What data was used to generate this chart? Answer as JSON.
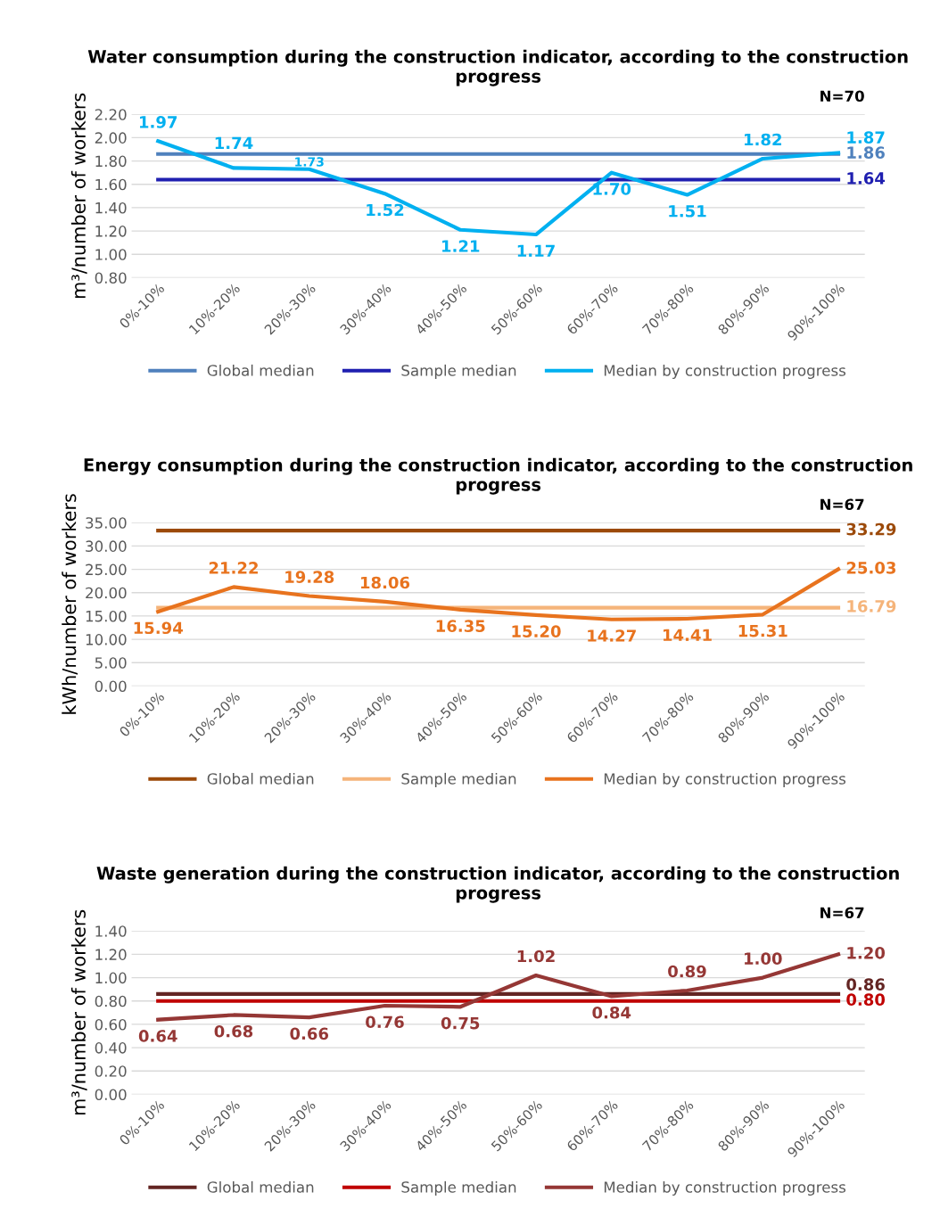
{
  "chart_data": [
    {
      "type": "line",
      "title": "Water consumption during the construction indicator, according to the construction progress",
      "ylabel": "m³/number of workers",
      "annotations": [
        "N=70"
      ],
      "categories": [
        "0%-10%",
        "10%-20%",
        "20%-30%",
        "30%-40%",
        "40%-50%",
        "50%-60%",
        "60%-70%",
        "70%-80%",
        "80%-90%",
        "90%-100%"
      ],
      "series": [
        {
          "name": "Global median",
          "color": "#4f81bd",
          "values": [
            1.86,
            1.86,
            1.86,
            1.86,
            1.86,
            1.86,
            1.86,
            1.86,
            1.86,
            1.86
          ],
          "value_labels": [
            null,
            null,
            null,
            null,
            null,
            null,
            null,
            null,
            null,
            "1.86"
          ]
        },
        {
          "name": "Sample median",
          "color": "#1f1fb0",
          "values": [
            1.64,
            1.64,
            1.64,
            1.64,
            1.64,
            1.64,
            1.64,
            1.64,
            1.64,
            1.64
          ],
          "value_labels": [
            null,
            null,
            null,
            null,
            null,
            null,
            null,
            null,
            null,
            "1.64"
          ]
        },
        {
          "name": "Median by construction progress",
          "color": "#00b0f0",
          "values": [
            1.97,
            1.74,
            1.73,
            1.52,
            1.21,
            1.17,
            1.7,
            1.51,
            1.82,
            1.87
          ],
          "value_labels": [
            "1.97",
            "1.74",
            "1.73",
            "1.52",
            "1.21",
            "1.17",
            "1.70",
            "1.51",
            "1.82",
            "1.87"
          ]
        }
      ],
      "ylim": [
        0.8,
        2.2
      ],
      "yticks": [
        {
          "value": 0.8,
          "label": "0.80"
        },
        {
          "value": 1.0,
          "label": "1.00"
        },
        {
          "value": 1.2,
          "label": "1.20"
        },
        {
          "value": 1.4,
          "label": "1.40"
        },
        {
          "value": 1.6,
          "label": "1.60"
        },
        {
          "value": 1.8,
          "label": "1.80"
        },
        {
          "value": 2.0,
          "label": "2.00"
        },
        {
          "value": 2.2,
          "label": "2.20"
        }
      ],
      "grid": "y",
      "legend": "bottom",
      "marker": "none",
      "line_style": "solid"
    },
    {
      "type": "line",
      "title": "Energy consumption during the construction indicator, according to the construction progress",
      "ylabel": "kWh/number of workers",
      "annotations": [
        "N=67"
      ],
      "categories": [
        "0%-10%",
        "10%-20%",
        "20%-30%",
        "30%-40%",
        "40%-50%",
        "50%-60%",
        "60%-70%",
        "70%-80%",
        "80%-90%",
        "90%-100%"
      ],
      "series": [
        {
          "name": "Global median",
          "color": "#9c4a0a",
          "values": [
            33.29,
            33.29,
            33.29,
            33.29,
            33.29,
            33.29,
            33.29,
            33.29,
            33.29,
            33.29
          ],
          "value_labels": [
            null,
            null,
            null,
            null,
            null,
            null,
            null,
            null,
            null,
            "33.29"
          ]
        },
        {
          "name": "Sample median",
          "color": "#f5b47a",
          "values": [
            16.79,
            16.79,
            16.79,
            16.79,
            16.79,
            16.79,
            16.79,
            16.79,
            16.79,
            16.79
          ],
          "value_labels": [
            null,
            null,
            null,
            null,
            null,
            null,
            null,
            null,
            null,
            "16.79"
          ]
        },
        {
          "name": "Median by construction progress",
          "color": "#e8731e",
          "values": [
            15.94,
            21.22,
            19.28,
            18.06,
            16.35,
            15.2,
            14.27,
            14.41,
            15.31,
            25.03
          ],
          "value_labels": [
            "15.94",
            "21.22",
            "19.28",
            "18.06",
            "16.35",
            "15.20",
            "14.27",
            "14.41",
            "15.31",
            "25.03"
          ]
        }
      ],
      "ylim": [
        0,
        35
      ],
      "yticks": [
        {
          "value": 0,
          "label": "0.00"
        },
        {
          "value": 5,
          "label": "5.00"
        },
        {
          "value": 10,
          "label": "10.00"
        },
        {
          "value": 15,
          "label": "15.00"
        },
        {
          "value": 20,
          "label": "20.00"
        },
        {
          "value": 25,
          "label": "25.00"
        },
        {
          "value": 30,
          "label": "30.00"
        },
        {
          "value": 35,
          "label": "35.00"
        }
      ],
      "grid": "y",
      "legend": "bottom",
      "marker": "none",
      "line_style": "solid"
    },
    {
      "type": "line",
      "title": "Waste generation during the construction indicator, according to the construction progress",
      "ylabel": "m³/number of workers",
      "annotations": [
        "N=67"
      ],
      "categories": [
        "0%-10%",
        "10%-20%",
        "20%-30%",
        "30%-40%",
        "40%-50%",
        "50%-60%",
        "60%-70%",
        "70%-80%",
        "80%-90%",
        "90%-100%"
      ],
      "series": [
        {
          "name": "Global median",
          "color": "#632523",
          "values": [
            0.86,
            0.86,
            0.86,
            0.86,
            0.86,
            0.86,
            0.86,
            0.86,
            0.86,
            0.86
          ],
          "value_labels": [
            null,
            null,
            null,
            null,
            null,
            null,
            null,
            null,
            null,
            "0.86"
          ]
        },
        {
          "name": "Sample median",
          "color": "#c00000",
          "values": [
            0.8,
            0.8,
            0.8,
            0.8,
            0.8,
            0.8,
            0.8,
            0.8,
            0.8,
            0.8
          ],
          "value_labels": [
            null,
            null,
            null,
            null,
            null,
            null,
            null,
            null,
            null,
            "0.80"
          ]
        },
        {
          "name": "Median by construction progress",
          "color": "#953735",
          "values": [
            0.64,
            0.68,
            0.66,
            0.76,
            0.75,
            1.02,
            0.84,
            0.89,
            1.0,
            1.2
          ],
          "value_labels": [
            "0.64",
            "0.68",
            "0.66",
            "0.76",
            "0.75",
            "1.02",
            "0.84",
            "0.89",
            "1.00",
            "1.20"
          ]
        }
      ],
      "ylim": [
        0,
        1.4
      ],
      "yticks": [
        {
          "value": 0,
          "label": "0.00"
        },
        {
          "value": 0.2,
          "label": "0.20"
        },
        {
          "value": 0.4,
          "label": "0.40"
        },
        {
          "value": 0.6,
          "label": "0.60"
        },
        {
          "value": 0.8,
          "label": "0.80"
        },
        {
          "value": 1.0,
          "label": "1.00"
        },
        {
          "value": 1.2,
          "label": "1.20"
        },
        {
          "value": 1.4,
          "label": "1.40"
        }
      ],
      "grid": "y",
      "legend": "bottom",
      "marker": "none",
      "line_style": "solid"
    }
  ]
}
